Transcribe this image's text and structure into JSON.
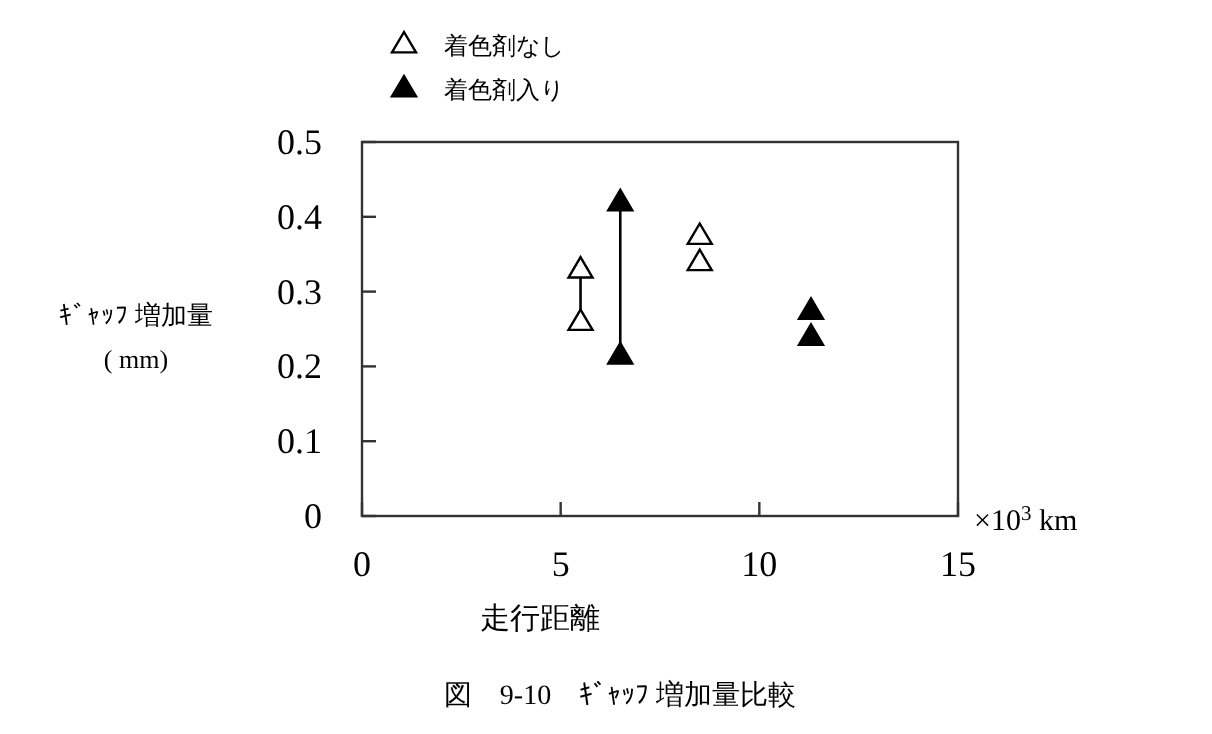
{
  "chart_data": {
    "type": "scatter",
    "title": "図　9-10　ｷﾞｬｯﾌ 増加量比較",
    "xlabel": "走行距離",
    "ylabel": "ｷﾞｬｯﾌ 増加量 ( mm)",
    "annotations": [
      "×10$^{3}$ km"
    ],
    "xlim": [
      0,
      15
    ],
    "xticks": [
      0,
      5,
      10,
      15
    ],
    "ylim": [
      0,
      0.5
    ],
    "yticks": [
      0,
      0.1,
      0.2,
      0.3,
      0.4,
      0.5
    ],
    "marker": "triangle",
    "legend": "top left",
    "series": [
      {
        "type": "line",
        "marker": "none",
        "color": "#000000",
        "x": [
          5.5,
          5.5
        ],
        "values": [
          0.26,
          0.33
        ]
      },
      {
        "type": "line",
        "marker": "none",
        "color": "#000000",
        "x": [
          6.5,
          6.5
        ],
        "values": [
          0.215,
          0.42
        ]
      },
      {
        "name": "着色剤なし",
        "color": "#ffffff",
        "x": [
          5.5,
          5.5,
          8.5,
          8.5
        ],
        "values": [
          0.26,
          0.33,
          0.34,
          0.375
        ]
      },
      {
        "name": "着色剤入り",
        "color": "#000000",
        "x": [
          6.5,
          6.5,
          11.3,
          11.3
        ],
        "values": [
          0.215,
          0.42,
          0.24,
          0.275
        ]
      }
    ]
  }
}
